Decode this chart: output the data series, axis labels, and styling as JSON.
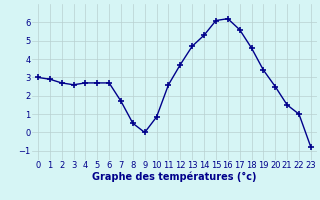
{
  "hours": [
    0,
    1,
    2,
    3,
    4,
    5,
    6,
    7,
    8,
    9,
    10,
    11,
    12,
    13,
    14,
    15,
    16,
    17,
    18,
    19,
    20,
    21,
    22,
    23
  ],
  "temps": [
    3.0,
    2.9,
    2.7,
    2.6,
    2.7,
    2.7,
    2.7,
    1.7,
    0.5,
    0.0,
    0.85,
    2.6,
    3.7,
    4.7,
    5.3,
    6.1,
    6.2,
    5.6,
    4.6,
    3.4,
    2.5,
    1.5,
    1.0,
    -0.8
  ],
  "line_color": "#00008B",
  "marker": "+",
  "marker_size": 4,
  "marker_lw": 1.2,
  "bg_color": "#d6f5f5",
  "grid_color": "#b8d0d0",
  "xlabel": "Graphe des températures (°c)",
  "xlabel_color": "#00008B",
  "xlabel_fontsize": 7,
  "tick_color": "#00008B",
  "tick_fontsize": 6,
  "ylim": [
    -1.5,
    7.0
  ],
  "xlim": [
    -0.5,
    23.5
  ],
  "yticks": [
    -1,
    0,
    1,
    2,
    3,
    4,
    5,
    6
  ],
  "xticks": [
    0,
    1,
    2,
    3,
    4,
    5,
    6,
    7,
    8,
    9,
    10,
    11,
    12,
    13,
    14,
    15,
    16,
    17,
    18,
    19,
    20,
    21,
    22,
    23
  ]
}
